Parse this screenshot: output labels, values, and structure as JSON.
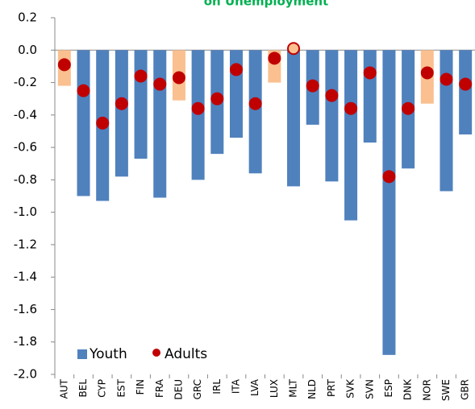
{
  "chart_data": {
    "type": "bar_dot",
    "title": "on Unemployment",
    "categories": [
      "AUT",
      "BEL",
      "CYP",
      "EST",
      "FIN",
      "FRA",
      "DEU",
      "GRC",
      "IRL",
      "ITA",
      "LVA",
      "LUX",
      "MLT",
      "NLD",
      "PRT",
      "SVK",
      "SVN",
      "ESP",
      "DNK",
      "NOR",
      "SWE",
      "GBR"
    ],
    "series": [
      {
        "name": "Youth",
        "color": "#4f81bd",
        "bar_colors": [
          "#fac090",
          "#4f81bd",
          "#4f81bd",
          "#4f81bd",
          "#4f81bd",
          "#4f81bd",
          "#fac090",
          "#4f81bd",
          "#4f81bd",
          "#4f81bd",
          "#4f81bd",
          "#fac090",
          "#4f81bd",
          "#4f81bd",
          "#4f81bd",
          "#4f81bd",
          "#4f81bd",
          "#4f81bd",
          "#4f81bd",
          "#fac090",
          "#4f81bd",
          "#4f81bd"
        ],
        "values": [
          -0.22,
          -0.9,
          -0.93,
          -0.78,
          -0.67,
          -0.91,
          -0.31,
          -0.8,
          -0.64,
          -0.54,
          -0.76,
          -0.2,
          -0.84,
          -0.46,
          -0.81,
          -1.05,
          -0.57,
          -1.88,
          -0.73,
          -0.33,
          -0.87,
          -0.52
        ]
      },
      {
        "name": "Adults",
        "color": "#c00000",
        "point_colors": [
          "#c00000",
          "#c00000",
          "#c00000",
          "#c00000",
          "#c00000",
          "#c00000",
          "#c00000",
          "#c00000",
          "#c00000",
          "#c00000",
          "#c00000",
          "#c00000",
          "#fac090",
          "#c00000",
          "#c00000",
          "#c00000",
          "#c00000",
          "#c00000",
          "#c00000",
          "#c00000",
          "#c00000",
          "#c00000"
        ],
        "values": [
          -0.09,
          -0.25,
          -0.45,
          -0.33,
          -0.16,
          -0.21,
          -0.17,
          -0.36,
          -0.3,
          -0.12,
          -0.33,
          -0.05,
          0.01,
          -0.22,
          -0.28,
          -0.36,
          -0.14,
          -0.78,
          -0.36,
          -0.14,
          -0.18,
          -0.21
        ]
      }
    ],
    "ylim": [
      -2.0,
      0.2
    ],
    "yticks": [
      {
        "value": 0.2,
        "label": "0.2"
      },
      {
        "value": 0,
        "label": "0.0"
      },
      {
        "value": -0.2,
        "label": "-0.2"
      },
      {
        "value": -0.4,
        "label": "-0.4"
      },
      {
        "value": -0.6,
        "label": "-0.6"
      },
      {
        "value": -0.8,
        "label": "-0.8"
      },
      {
        "value": -1,
        "label": "-1.0"
      },
      {
        "value": -1.2,
        "label": "-1.2"
      },
      {
        "value": -1.4,
        "label": "-1.4"
      },
      {
        "value": -1.6,
        "label": "-1.6"
      },
      {
        "value": -1.8,
        "label": "-1.8"
      },
      {
        "value": -2,
        "label": "-2.0"
      }
    ],
    "legend": "lower left"
  }
}
